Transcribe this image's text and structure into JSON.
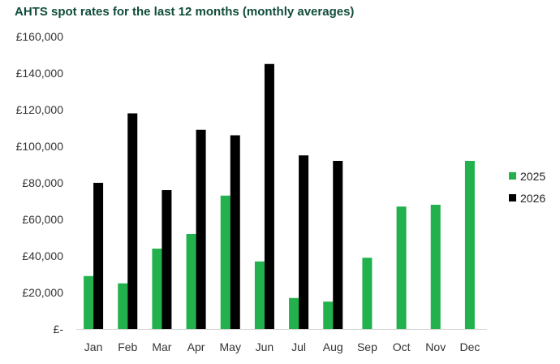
{
  "chart_data": {
    "type": "bar",
    "title": "AHTS spot rates for the last 12 months (monthly averages)",
    "categories": [
      "Jan",
      "Feb",
      "Mar",
      "Apr",
      "May",
      "Jun",
      "Jul",
      "Aug",
      "Sep",
      "Oct",
      "Nov",
      "Dec"
    ],
    "series": [
      {
        "name": "2025",
        "color": "#22b14c",
        "values": [
          29000,
          25000,
          44000,
          52000,
          73000,
          37000,
          17000,
          15000,
          39000,
          67000,
          68000,
          92000
        ]
      },
      {
        "name": "2026",
        "color": "#000000",
        "values": [
          80000,
          118000,
          76000,
          109000,
          106000,
          145000,
          95000,
          92000,
          null,
          null,
          null,
          null
        ]
      }
    ],
    "ylim": [
      0,
      160000
    ],
    "yticks": [
      {
        "value": 0,
        "label": "£-"
      },
      {
        "value": 20000,
        "label": "£20,000"
      },
      {
        "value": 40000,
        "label": "£40,000"
      },
      {
        "value": 60000,
        "label": "£60,000"
      },
      {
        "value": 80000,
        "label": "£80,000"
      },
      {
        "value": 100000,
        "label": "£100,000"
      },
      {
        "value": 120000,
        "label": "£120,000"
      },
      {
        "value": 140000,
        "label": "£140,000"
      },
      {
        "value": 160000,
        "label": "£160,000"
      }
    ],
    "xlabel": "",
    "ylabel": "",
    "grid": false,
    "legend": "right"
  }
}
